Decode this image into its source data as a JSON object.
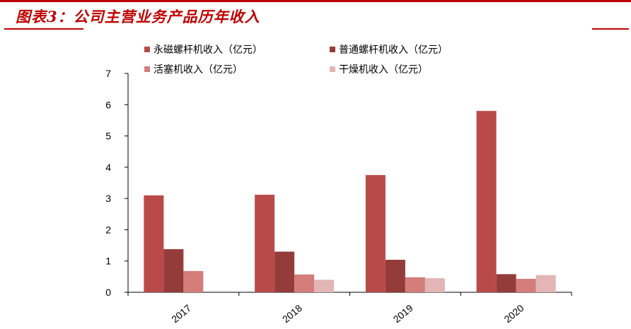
{
  "header": {
    "title": "图表3：公司主营业务产品历年收入"
  },
  "colors": {
    "accent": "#c00000",
    "series": [
      "#b94a48",
      "#943c3a",
      "#d47d7b",
      "#e3b5b4"
    ]
  },
  "chart_data": {
    "type": "bar",
    "categories": [
      "2017",
      "2018",
      "2019",
      "2020"
    ],
    "series": [
      {
        "name": "永磁螺杆机收入（亿元）",
        "values": [
          3.1,
          3.12,
          3.75,
          5.8
        ]
      },
      {
        "name": "普通螺杆机收入（亿元）",
        "values": [
          1.38,
          1.3,
          1.04,
          0.58
        ]
      },
      {
        "name": "活塞机收入（亿元）",
        "values": [
          0.68,
          0.57,
          0.48,
          0.43
        ]
      },
      {
        "name": "干燥机收入（亿元）",
        "values": [
          0,
          0.4,
          0.45,
          0.55
        ]
      }
    ],
    "ylim": [
      0,
      7
    ],
    "yticks": [
      "0",
      "1",
      "2",
      "3",
      "4",
      "5",
      "6",
      "7"
    ],
    "legend_position": "top",
    "grid": false
  }
}
